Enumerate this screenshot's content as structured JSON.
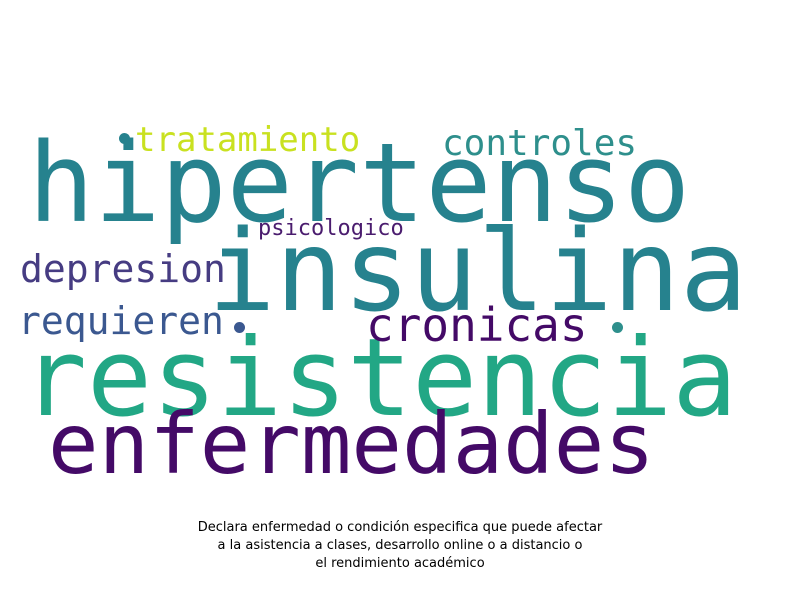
{
  "words": [
    {
      "text": "hipertenso",
      "color": "#26828e"
    },
    {
      "text": "insulina",
      "color": "#26828e"
    },
    {
      "text": "resistencia",
      "color": "#22a785"
    },
    {
      "text": "enfermedades",
      "color": "#440a67"
    },
    {
      "text": "tratamiento",
      "color": "#c9e120"
    },
    {
      "text": "controles",
      "color": "#2e8f8c"
    },
    {
      "text": "psicologico",
      "color": "#4a1c6e"
    },
    {
      "text": "depresion",
      "color": "#463c82"
    },
    {
      "text": "requieren",
      "color": "#3b5890"
    },
    {
      "text": "cronicas",
      "color": "#440a67"
    }
  ],
  "dot_colors": [
    "#26828e",
    "#3b5890",
    "#2e8f8c"
  ],
  "caption": {
    "line1": "Declara enfermedad o condición especifica que puede afectar",
    "line2": "a la asistencia a clases, desarrollo online o a distancio o",
    "line3": "el rendimiento académico"
  }
}
